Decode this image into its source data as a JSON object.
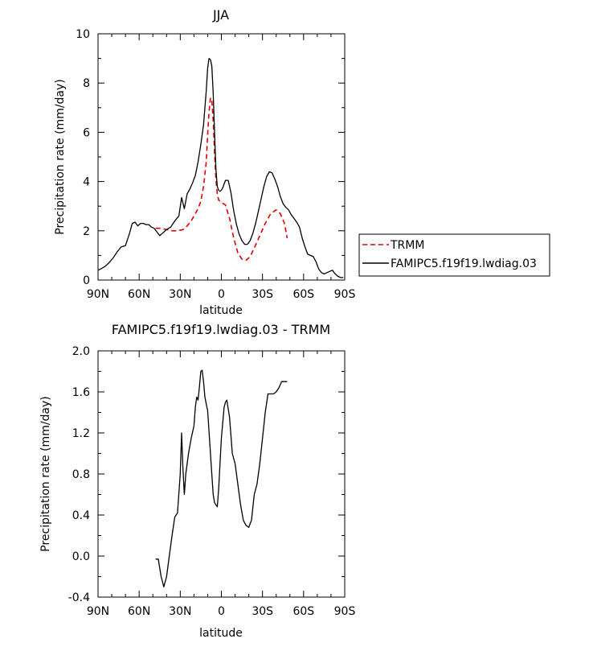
{
  "chart_data": [
    {
      "type": "line",
      "title": "JJA",
      "xlabel": "latitude",
      "ylabel": "Precipitation rate (mm/day)",
      "xlim": [
        90,
        -90
      ],
      "ylim": [
        0,
        10
      ],
      "x_ticks": [
        90,
        60,
        30,
        0,
        -30,
        -60,
        -90
      ],
      "x_tick_labels": [
        "90N",
        "60N",
        "30N",
        "0",
        "30S",
        "60S",
        "90S"
      ],
      "y_ticks": [
        0,
        2,
        4,
        6,
        8,
        10
      ],
      "y_tick_labels": [
        "0",
        "2",
        "4",
        "6",
        "8",
        "10"
      ],
      "legend": [
        "TRMM",
        "FAMIPC5.f19f19.lwdiag.03"
      ],
      "legend_position": "right",
      "series": [
        {
          "name": "TRMM",
          "color": "#e00000",
          "style": "dashed",
          "x": [
            48,
            44,
            40,
            36,
            32,
            28,
            25,
            22,
            20,
            17,
            15,
            13,
            11,
            10,
            9,
            8,
            7,
            6,
            5,
            4,
            3,
            2,
            0,
            -3,
            -6,
            -9,
            -12,
            -15,
            -18,
            -21,
            -24,
            -28,
            -32,
            -36,
            -40,
            -43,
            -46,
            -48
          ],
          "y": [
            2.1,
            2.1,
            2.05,
            2.0,
            2.0,
            2.05,
            2.2,
            2.4,
            2.6,
            2.9,
            3.2,
            3.8,
            4.8,
            5.9,
            6.8,
            7.4,
            7.3,
            6.5,
            5.2,
            4.1,
            3.5,
            3.25,
            3.15,
            3.05,
            2.5,
            1.7,
            1.1,
            0.85,
            0.8,
            0.95,
            1.3,
            1.8,
            2.3,
            2.7,
            2.85,
            2.7,
            2.3,
            1.7
          ]
        },
        {
          "name": "FAMIPC5.f19f19.lwdiag.03",
          "color": "#000000",
          "style": "solid",
          "x": [
            90,
            88,
            85,
            82,
            79,
            76,
            73,
            70,
            67,
            65,
            63,
            61,
            59,
            57,
            55,
            53,
            51,
            49,
            47,
            45,
            43,
            40,
            37,
            34,
            31,
            29,
            27,
            25,
            23,
            21,
            19,
            17,
            15,
            13,
            12,
            11,
            10,
            9,
            8,
            7,
            6,
            5,
            4,
            3,
            2,
            1,
            0,
            -1,
            -3,
            -5,
            -7,
            -9,
            -11,
            -13,
            -15,
            -17,
            -19,
            -21,
            -23,
            -25,
            -27,
            -29,
            -31,
            -33,
            -35,
            -37,
            -39,
            -41,
            -43,
            -45,
            -47,
            -49,
            -51,
            -53,
            -55,
            -57,
            -59,
            -61,
            -63,
            -65,
            -67,
            -69,
            -71,
            -73,
            -75,
            -77,
            -79,
            -81,
            -83,
            -85,
            -87,
            -89
          ],
          "y": [
            0.4,
            0.45,
            0.55,
            0.7,
            0.9,
            1.15,
            1.35,
            1.4,
            1.9,
            2.3,
            2.35,
            2.2,
            2.3,
            2.3,
            2.25,
            2.25,
            2.15,
            2.1,
            1.95,
            1.8,
            1.9,
            2.05,
            2.15,
            2.4,
            2.6,
            3.35,
            2.9,
            3.5,
            3.7,
            3.95,
            4.25,
            4.8,
            5.5,
            6.3,
            7.0,
            7.7,
            8.6,
            9.0,
            8.95,
            8.7,
            7.6,
            6.0,
            4.5,
            3.8,
            3.65,
            3.6,
            3.65,
            3.75,
            4.05,
            4.05,
            3.55,
            2.8,
            2.25,
            1.85,
            1.6,
            1.45,
            1.45,
            1.6,
            1.9,
            2.3,
            2.8,
            3.3,
            3.8,
            4.2,
            4.4,
            4.35,
            4.1,
            3.8,
            3.4,
            3.1,
            2.95,
            2.85,
            2.65,
            2.5,
            2.35,
            2.15,
            1.7,
            1.35,
            1.05,
            1.0,
            0.95,
            0.75,
            0.45,
            0.3,
            0.25,
            0.3,
            0.35,
            0.4,
            0.25,
            0.15,
            0.1,
            0.1
          ]
        }
      ]
    },
    {
      "type": "line",
      "title": "FAMIPC5.f19f19.lwdiag.03 - TRMM",
      "xlabel": "latitude",
      "ylabel": "Precipitation rate (mm/day)",
      "xlim": [
        90,
        -90
      ],
      "ylim": [
        -0.4,
        2.0
      ],
      "x_ticks": [
        90,
        60,
        30,
        0,
        -30,
        -60,
        -90
      ],
      "x_tick_labels": [
        "90N",
        "60N",
        "30N",
        "0",
        "30S",
        "60S",
        "90S"
      ],
      "y_ticks": [
        -0.4,
        0.0,
        0.4,
        0.8,
        1.2,
        1.6,
        2.0
      ],
      "y_tick_labels": [
        "-0.4",
        "0.0",
        "0.4",
        "0.8",
        "1.2",
        "1.6",
        "2.0"
      ],
      "series": [
        {
          "name": "FAMIPC5.f19f19.lwdiag.03 - TRMM",
          "color": "#000000",
          "style": "solid",
          "x": [
            48,
            46,
            44,
            42,
            40,
            38,
            36,
            34,
            32,
            30,
            29,
            28,
            27,
            26,
            24,
            22,
            20,
            19,
            18,
            17,
            16,
            15,
            14,
            13,
            12,
            11,
            10,
            8,
            6,
            5,
            4,
            3,
            2,
            0,
            -2,
            -3,
            -4,
            -6,
            -8,
            -10,
            -12,
            -14,
            -16,
            -18,
            -20,
            -22,
            -24,
            -26,
            -28,
            -30,
            -32,
            -34,
            -36,
            -38,
            -40,
            -42,
            -44,
            -46,
            -48
          ],
          "y": [
            -0.03,
            -0.03,
            -0.2,
            -0.3,
            -0.2,
            0.0,
            0.2,
            0.38,
            0.42,
            0.8,
            1.2,
            0.85,
            0.6,
            0.8,
            1.0,
            1.15,
            1.27,
            1.45,
            1.55,
            1.52,
            1.65,
            1.8,
            1.81,
            1.7,
            1.55,
            1.48,
            1.42,
            1.0,
            0.6,
            0.52,
            0.5,
            0.48,
            0.65,
            1.15,
            1.45,
            1.5,
            1.52,
            1.35,
            1.0,
            0.9,
            0.7,
            0.5,
            0.35,
            0.3,
            0.28,
            0.35,
            0.6,
            0.7,
            0.9,
            1.15,
            1.4,
            1.58,
            1.58,
            1.58,
            1.6,
            1.64,
            1.7,
            1.7,
            1.7
          ]
        }
      ]
    }
  ]
}
